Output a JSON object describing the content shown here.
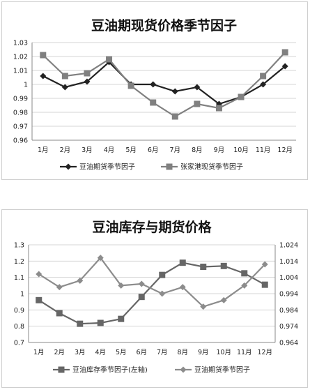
{
  "chart_data": [
    {
      "type": "line",
      "title": "豆油期现货价格季节因子",
      "categories": [
        "1月",
        "2月",
        "3月",
        "4月",
        "5月",
        "6月",
        "7月",
        "8月",
        "9月",
        "10月",
        "11月",
        "12月"
      ],
      "ylim": [
        0.96,
        1.03
      ],
      "yticks": [
        "0.96",
        "0.97",
        "0.98",
        "0.99",
        "1",
        "1.01",
        "1.02",
        "1.03"
      ],
      "series": [
        {
          "name": "豆油期货季节因子",
          "color": "#222222",
          "marker": "diamond",
          "values": [
            1.006,
            0.998,
            1.002,
            1.016,
            1.0,
            1.0,
            0.995,
            0.998,
            0.986,
            0.991,
            1.0,
            1.013
          ]
        },
        {
          "name": "张家港现货季节因子",
          "color": "#808080",
          "marker": "square",
          "values": [
            1.021,
            1.006,
            1.008,
            1.018,
            0.999,
            0.987,
            0.977,
            0.986,
            0.983,
            0.991,
            1.006,
            1.023
          ]
        }
      ],
      "grid": true,
      "legend_position": "bottom"
    },
    {
      "type": "line",
      "title": "豆油库存与期货价格",
      "categories": [
        "1月",
        "2月",
        "3月",
        "4月",
        "5月",
        "6月",
        "7月",
        "8月",
        "9月",
        "10月",
        "11月",
        "12月"
      ],
      "ylim_left": [
        0.7,
        1.3
      ],
      "yticks_left": [
        "0.7",
        "0.8",
        "0.9",
        "1",
        "1.1",
        "1.2",
        "1.3"
      ],
      "ylim_right": [
        0.964,
        1.024
      ],
      "yticks_right": [
        "0.964",
        "0.974",
        "0.984",
        "0.994",
        "1.004",
        "1.014",
        "1.024"
      ],
      "series": [
        {
          "name": "豆油库存季节因子(左轴)",
          "axis": "left",
          "color": "#666666",
          "marker": "square",
          "values": [
            0.96,
            0.88,
            0.815,
            0.82,
            0.845,
            0.98,
            1.115,
            1.19,
            1.165,
            1.17,
            1.125,
            1.055
          ]
        },
        {
          "name": "豆油期货季节因子",
          "axis": "right",
          "color": "#8c8c8c",
          "marker": "diamond",
          "values": [
            1.006,
            0.998,
            1.002,
            1.016,
            0.999,
            1.0,
            0.994,
            0.998,
            0.986,
            0.99,
            0.999,
            1.012
          ]
        }
      ],
      "grid": true,
      "legend_position": "bottom"
    }
  ]
}
